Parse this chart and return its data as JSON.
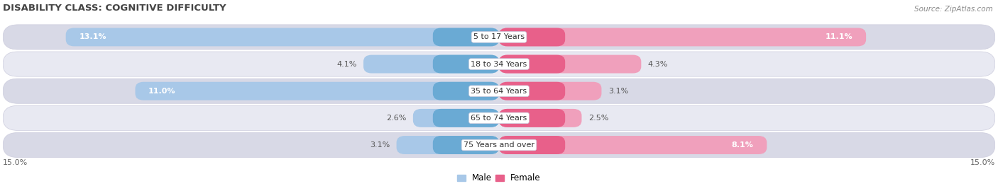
{
  "title": "DISABILITY CLASS: COGNITIVE DIFFICULTY",
  "source": "Source: ZipAtlas.com",
  "categories": [
    "5 to 17 Years",
    "18 to 34 Years",
    "35 to 64 Years",
    "65 to 74 Years",
    "75 Years and over"
  ],
  "male_values": [
    13.1,
    4.1,
    11.0,
    2.6,
    3.1
  ],
  "female_values": [
    11.1,
    4.3,
    3.1,
    2.5,
    8.1
  ],
  "max_val": 15.0,
  "male_color_dark": "#6aaad4",
  "male_color_light": "#a8c8e8",
  "female_color_dark": "#e8608a",
  "female_color_light": "#f0a0bc",
  "row_bg_color_dark": "#d8d9e6",
  "row_bg_color_light": "#e8e9f2",
  "row_outline_color": "#c8c9d8",
  "label_color": "#666666",
  "title_color": "#444444",
  "title_fontsize": 9.5,
  "source_fontsize": 7.5,
  "bar_label_fontsize": 8,
  "category_fontsize": 8,
  "legend_fontsize": 8.5,
  "axis_label_fontsize": 8
}
